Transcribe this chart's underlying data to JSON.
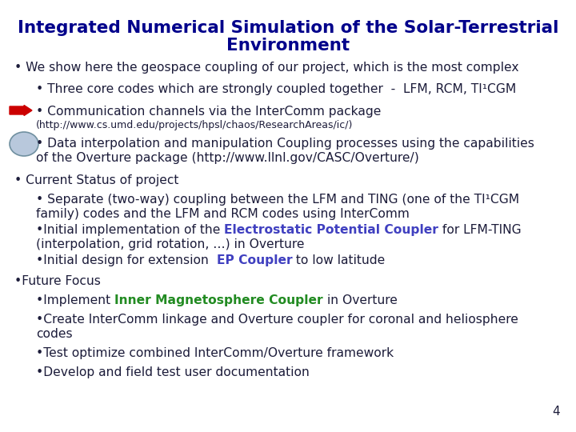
{
  "bg_color": "#FFFFFF",
  "title_color": "#00008B",
  "body_color": "#1C1C3A",
  "blue_hl": "#4040C0",
  "green_hl": "#228B22",
  "page_number": "4",
  "title_line1": "Integrated Numerical Simulation of the Solar-Terrestrial",
  "title_line2": "Environment",
  "title_fs": 15.5,
  "body_fs": 11.2,
  "small_fs": 9.0,
  "arrow_color": "#CC0000",
  "ellipse_face": "#B8C8DC",
  "ellipse_edge": "#7090A0"
}
